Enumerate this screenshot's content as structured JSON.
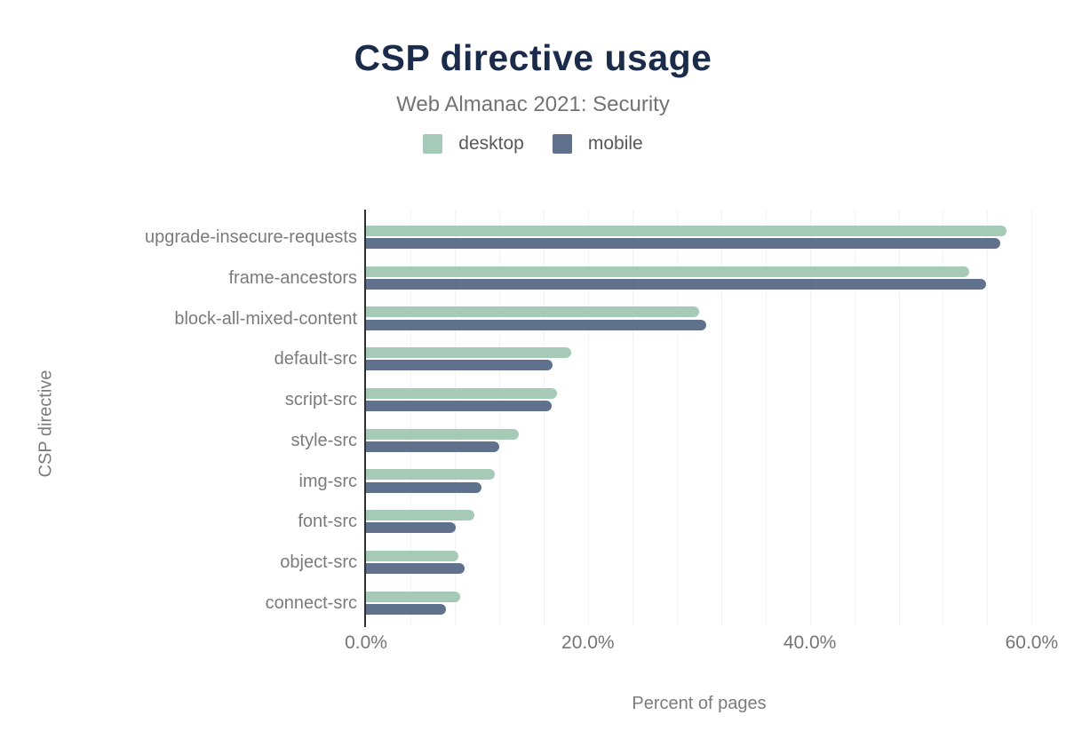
{
  "colors": {
    "title": "#1b2b4a",
    "subtitle_text": "#737373",
    "axis_text": "#757575",
    "category_text": "#7b7b7b",
    "legend_text": "#595959",
    "axis_line": "#2f2f2f",
    "gridline": "#f2f2f2",
    "background": "#ffffff",
    "desktop_series": "#a5cab7",
    "mobile_series": "#5f718c"
  },
  "chart_data": {
    "type": "bar",
    "orientation": "horizontal",
    "title": "CSP directive usage",
    "subtitle": "Web Almanac 2021: Security",
    "categories": [
      "upgrade-insecure-requests",
      "frame-ancestors",
      "block-all-mixed-content",
      "default-src",
      "script-src",
      "style-src",
      "img-src",
      "font-src",
      "object-src",
      "connect-src"
    ],
    "series": [
      {
        "name": "desktop",
        "color": "#a5cab7",
        "values": [
          57.7,
          54.4,
          30.0,
          18.5,
          17.2,
          13.8,
          11.6,
          9.8,
          8.3,
          8.5
        ]
      },
      {
        "name": "mobile",
        "color": "#5f718c",
        "values": [
          57.2,
          55.9,
          30.7,
          16.8,
          16.7,
          12.0,
          10.4,
          8.1,
          8.9,
          7.2
        ]
      }
    ],
    "xlabel": "Percent of pages",
    "ylabel": "CSP directive",
    "xlim": [
      0,
      60
    ],
    "x_ticks": [
      0,
      20,
      40,
      60
    ],
    "x_tick_labels": [
      "0.0%",
      "20.0%",
      "40.0%",
      "60.0%"
    ],
    "grid": "vertical minor gridlines every 4%",
    "legend_position": "top"
  }
}
